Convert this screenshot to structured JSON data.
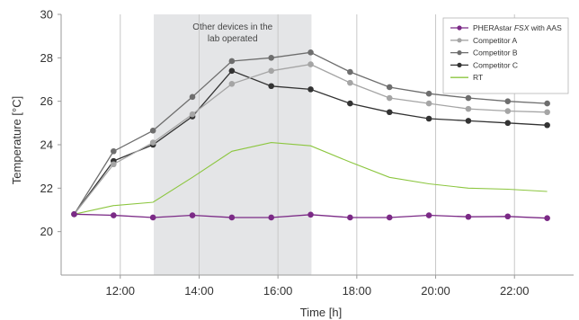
{
  "chart_data": {
    "type": "line",
    "xlabel": "Time [h]",
    "ylabel": "Temperature [°C]",
    "xlim": [
      10.5,
      23.5
    ],
    "ylim": [
      18,
      30
    ],
    "xticks": [
      12,
      14,
      16,
      18,
      20,
      22
    ],
    "xtick_labels": [
      "12:00",
      "14:00",
      "16:00",
      "18:00",
      "20:00",
      "22:00"
    ],
    "yticks": [
      20,
      22,
      24,
      26,
      28,
      30
    ],
    "ytick_labels": [
      "20",
      "22",
      "24",
      "26",
      "28",
      "30"
    ],
    "grid": "vertical",
    "legend_position": "top-right",
    "annotation": {
      "lines": [
        "Other devices in the",
        "lab operated"
      ],
      "x_start": 12.85,
      "x_end": 16.85
    },
    "series": [
      {
        "name": "PHERAstar FSX with AAS",
        "name_prefix": "PHERAstar ",
        "name_italic": "FSX",
        "name_suffix": " with AAS",
        "color": "#7b2a86",
        "markers": true,
        "x": [
          10.83,
          11.83,
          12.83,
          13.83,
          14.83,
          15.83,
          16.83,
          17.83,
          18.83,
          19.83,
          20.83,
          21.83,
          22.83
        ],
        "y": [
          20.8,
          20.75,
          20.65,
          20.75,
          20.65,
          20.65,
          20.78,
          20.65,
          20.65,
          20.75,
          20.68,
          20.7,
          20.62
        ]
      },
      {
        "name": "Competitor A",
        "color": "#a5a5a5",
        "markers": true,
        "x": [
          10.83,
          11.83,
          12.83,
          13.83,
          14.83,
          15.83,
          16.83,
          17.83,
          18.83,
          19.83,
          20.83,
          21.83,
          22.83
        ],
        "y": [
          20.8,
          23.1,
          24.1,
          25.4,
          26.8,
          27.4,
          27.7,
          26.85,
          26.15,
          25.9,
          25.65,
          25.55,
          25.5
        ]
      },
      {
        "name": "Competitor B",
        "color": "#6e6e6e",
        "markers": true,
        "x": [
          10.83,
          11.83,
          12.83,
          13.83,
          14.83,
          15.83,
          16.83,
          17.83,
          18.83,
          19.83,
          20.83,
          21.83,
          22.83
        ],
        "y": [
          20.8,
          23.7,
          24.65,
          26.2,
          27.85,
          28.0,
          28.25,
          27.35,
          26.65,
          26.35,
          26.15,
          26.0,
          25.9
        ]
      },
      {
        "name": "Competitor C",
        "color": "#333333",
        "markers": true,
        "x": [
          10.83,
          11.83,
          12.83,
          13.83,
          14.83,
          15.83,
          16.83,
          17.83,
          18.83,
          19.83,
          20.83,
          21.83,
          22.83
        ],
        "y": [
          20.8,
          23.25,
          24.0,
          25.3,
          27.4,
          26.7,
          26.55,
          25.9,
          25.5,
          25.2,
          25.1,
          25.0,
          24.9
        ]
      },
      {
        "name": "RT",
        "color": "#8cc63f",
        "markers": false,
        "x": [
          10.83,
          11.83,
          12.83,
          13.83,
          14.83,
          15.83,
          16.83,
          17.83,
          18.83,
          19.83,
          20.83,
          21.83,
          22.83
        ],
        "y": [
          20.8,
          21.2,
          21.35,
          22.5,
          23.7,
          24.1,
          23.95,
          23.2,
          22.5,
          22.2,
          22.0,
          21.95,
          21.85
        ]
      }
    ]
  }
}
